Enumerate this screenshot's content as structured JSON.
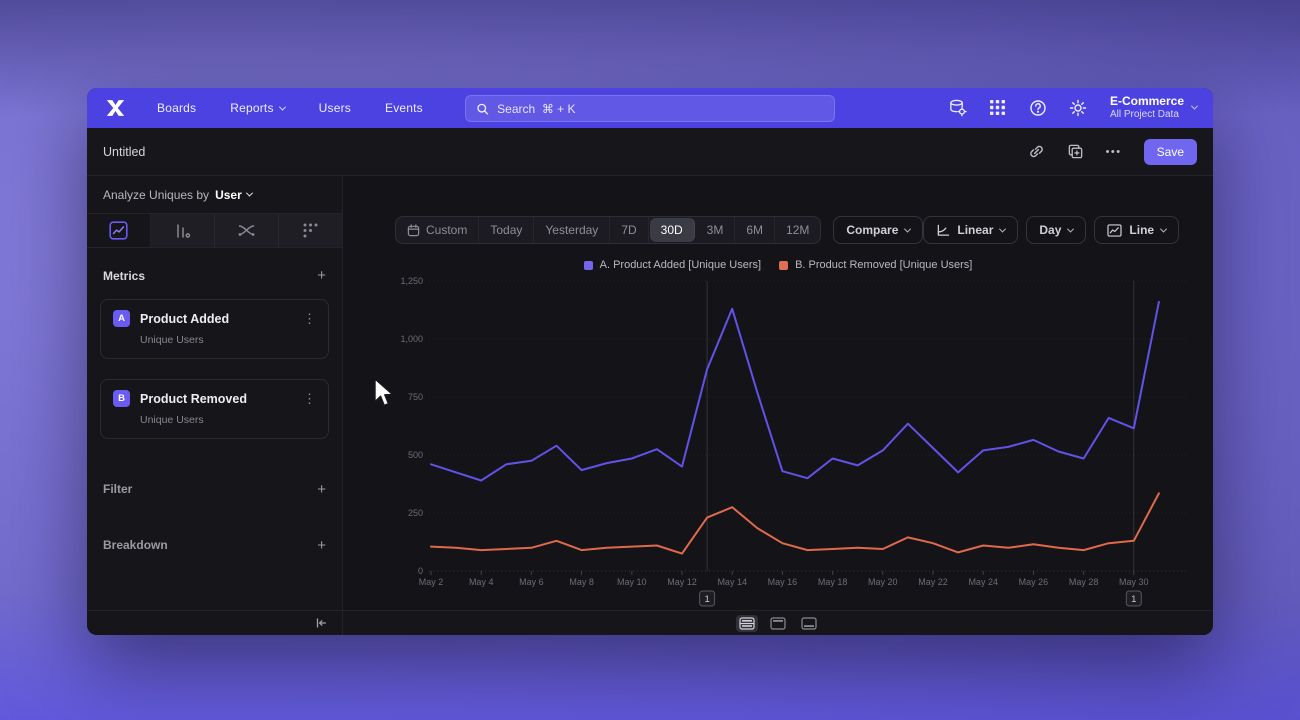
{
  "topnav": {
    "items": [
      {
        "label": "Boards"
      },
      {
        "label": "Reports"
      },
      {
        "label": "Users"
      },
      {
        "label": "Events"
      }
    ],
    "search_placeholder": "Search  ⌘ + K",
    "project": {
      "name": "E-Commerce",
      "scope": "All Project Data"
    }
  },
  "titlebar": {
    "title": "Untitled",
    "save_label": "Save"
  },
  "sidebar": {
    "analyze_prefix": "Analyze Uniques by",
    "analyze_value": "User",
    "metrics_header": "Metrics",
    "metrics": [
      {
        "badge": "A",
        "name": "Product Added",
        "sub": "Unique Users"
      },
      {
        "badge": "B",
        "name": "Product Removed",
        "sub": "Unique Users"
      }
    ],
    "filter_label": "Filter",
    "breakdown_label": "Breakdown"
  },
  "toolbar": {
    "ranges": [
      "Custom",
      "Today",
      "Yesterday",
      "7D",
      "30D",
      "3M",
      "6M",
      "12M"
    ],
    "active_range": "30D",
    "compare_label": "Compare",
    "scale_label": "Linear",
    "interval_label": "Day",
    "chart_type_label": "Line"
  },
  "legend": [
    {
      "label": "A. Product Added [Unique Users]",
      "color": "#7465ec"
    },
    {
      "label": "B. Product Removed [Unique Users]",
      "color": "#e07053"
    }
  ],
  "chart_data": {
    "type": "line",
    "x": [
      "May 2",
      "May 3",
      "May 4",
      "May 5",
      "May 6",
      "May 7",
      "May 8",
      "May 9",
      "May 10",
      "May 11",
      "May 12",
      "May 13",
      "May 14",
      "May 15",
      "May 16",
      "May 17",
      "May 18",
      "May 19",
      "May 20",
      "May 21",
      "May 22",
      "May 23",
      "May 24",
      "May 25",
      "May 26",
      "May 27",
      "May 28",
      "May 29",
      "May 30",
      "May 31"
    ],
    "series": [
      {
        "name": "A. Product Added [Unique Users]",
        "color": "#6152e8",
        "values": [
          460,
          425,
          390,
          460,
          475,
          540,
          435,
          465,
          485,
          525,
          450,
          870,
          1130,
          770,
          430,
          400,
          485,
          455,
          520,
          635,
          530,
          425,
          520,
          535,
          565,
          515,
          485,
          660,
          615,
          1160
        ]
      },
      {
        "name": "B. Product Removed [Unique Users]",
        "color": "#e0694c",
        "values": [
          105,
          100,
          90,
          95,
          100,
          130,
          90,
          100,
          105,
          110,
          75,
          230,
          275,
          185,
          120,
          90,
          95,
          100,
          95,
          145,
          120,
          80,
          110,
          100,
          115,
          100,
          90,
          120,
          130,
          335
        ]
      }
    ],
    "ylim": [
      0,
      1250
    ],
    "yticks": [
      0,
      250,
      500,
      750,
      1000,
      1250
    ],
    "ytick_labels": [
      "0",
      "250",
      "500",
      "750",
      "1,000",
      "1,250"
    ],
    "xtick_every": 2,
    "grid": true,
    "legend_position": "top-center",
    "annotations": [
      {
        "label": "1",
        "x_index": 11
      },
      {
        "label": "1",
        "x_index": 28
      }
    ]
  },
  "icons": {
    "plus": "+",
    "kebab": "⋮",
    "ellipsis": "•••"
  }
}
